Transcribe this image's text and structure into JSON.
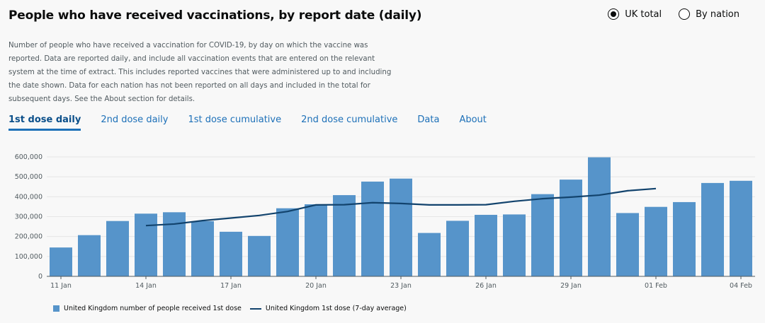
{
  "title": "People who have received vaccinations, by report date (daily)",
  "radios": [
    {
      "label": "UK total",
      "selected": true
    },
    {
      "label": "By nation",
      "selected": false
    }
  ],
  "description": "Number of people who have received a vaccination for COVID-19, by day on which the vaccine was reported. Data are reported daily, and include all vaccination events that are entered on the relevant system at the time of extract. This includes reported vaccines that were administered up to and including the date shown. Data for each nation has not been reported on all days and included in the total for subsequent days. See the About section for details.",
  "tabs": [
    {
      "label": "1st dose daily",
      "active": true
    },
    {
      "label": "2nd dose daily",
      "active": false
    },
    {
      "label": "1st dose cumulative",
      "active": false
    },
    {
      "label": "2nd dose cumulative",
      "active": false
    },
    {
      "label": "Data",
      "active": false
    },
    {
      "label": "About",
      "active": false
    }
  ],
  "colors": {
    "bar": "#5694ca",
    "line": "#12436d",
    "tab": "#1d70b8"
  },
  "chart_data": {
    "type": "bar",
    "categories": [
      "11 Jan",
      "12 Jan",
      "13 Jan",
      "14 Jan",
      "15 Jan",
      "16 Jan",
      "17 Jan",
      "18 Jan",
      "19 Jan",
      "20 Jan",
      "21 Jan",
      "22 Jan",
      "23 Jan",
      "24 Jan",
      "25 Jan",
      "26 Jan",
      "27 Jan",
      "28 Jan",
      "29 Jan",
      "30 Jan",
      "31 Jan",
      "01 Feb",
      "02 Feb",
      "03 Feb",
      "04 Feb"
    ],
    "tick_labels": [
      "11 Jan",
      "14 Jan",
      "17 Jan",
      "20 Jan",
      "23 Jan",
      "26 Jan",
      "29 Jan",
      "01 Feb",
      "04 Feb"
    ],
    "series": [
      {
        "name": "United Kingdom number of people received 1st dose",
        "kind": "bar",
        "values": [
          145000,
          207000,
          278000,
          315000,
          322000,
          277000,
          224000,
          203000,
          342000,
          362000,
          408000,
          476000,
          491000,
          218000,
          279000,
          309000,
          311000,
          413000,
          486000,
          598000,
          318000,
          349000,
          373000,
          469000,
          480000
        ]
      },
      {
        "name": "United Kingdom 1st dose (7-day average)",
        "kind": "line",
        "values": [
          null,
          null,
          null,
          255000,
          263000,
          280000,
          293000,
          306000,
          326000,
          359000,
          360000,
          370000,
          366000,
          359000,
          359000,
          360000,
          377000,
          390000,
          398000,
          408000,
          430000,
          441000,
          null,
          null,
          null
        ]
      }
    ],
    "y_ticks": [
      "0",
      "100,000",
      "200,000",
      "300,000",
      "400,000",
      "500,000",
      "600,000"
    ],
    "ylim": [
      0,
      600000
    ],
    "grid": true,
    "legend": "bottom-left"
  }
}
